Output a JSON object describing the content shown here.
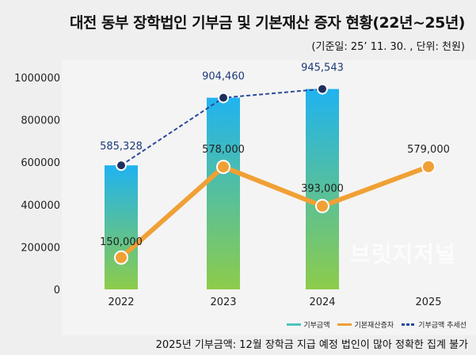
{
  "chart_data": {
    "type": "bar+line",
    "title": "대전 동부 장학법인 기부금 및 기본재산 증자 현황(22년~25년)",
    "subtitle": "(기준일: 25’ 11. 30. , 단위: 천원)",
    "categories": [
      "2022",
      "2023",
      "2024",
      "2025"
    ],
    "ylim": [
      0,
      1000000
    ],
    "yticks": [
      "0",
      "200000",
      "400000",
      "600000",
      "800000",
      "1000000"
    ],
    "grid": false,
    "legend_position": "bottom-right",
    "series": [
      {
        "name": "기부금액",
        "type": "bar",
        "values": [
          585328,
          904460,
          945543,
          null
        ],
        "labels": [
          "585,328",
          "904,460",
          "945,543",
          ""
        ],
        "color_top": "#1fb3f0",
        "color_bottom": "#8dcc4a"
      },
      {
        "name": "기본재산증자",
        "type": "line",
        "values": [
          150000,
          578000,
          393000,
          579000
        ],
        "labels": [
          "150,000",
          "578,000",
          "393,000",
          "579,000"
        ],
        "color": "#f0a035"
      },
      {
        "name": "기부금액 추세선",
        "type": "dashed-line",
        "values": [
          585328,
          904460,
          945543,
          null
        ],
        "color": "#2c4a9a"
      }
    ],
    "note": "2025년 기부금액: 12월 장학금 지급 예정 법인이 많아 정확한 집계 불가"
  },
  "watermark": "브릿지저널"
}
